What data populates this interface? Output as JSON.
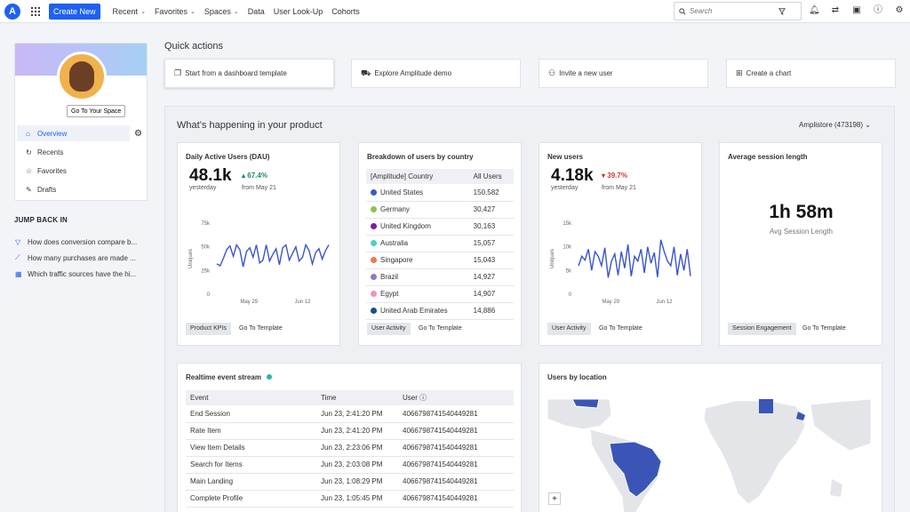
{
  "topnav": {
    "logo_letter": "A",
    "create_label": "Create New",
    "items": [
      {
        "label": "Recent",
        "chevron": true
      },
      {
        "label": "Favorites",
        "chevron": true
      },
      {
        "label": "Spaces",
        "chevron": true
      },
      {
        "label": "Data",
        "chevron": false
      },
      {
        "label": "User Look-Up",
        "chevron": false
      },
      {
        "label": "Cohorts",
        "chevron": false
      }
    ],
    "search_placeholder": "Search",
    "icons": [
      "bell-icon",
      "flow-icon",
      "square-icon",
      "help-icon",
      "gear-icon"
    ]
  },
  "sidebar": {
    "go_to_space": "Go To Your Space",
    "menu": [
      {
        "label": "Overview",
        "icon": "home-icon",
        "active": true
      },
      {
        "label": "Recents",
        "icon": "refresh-icon",
        "active": false
      },
      {
        "label": "Favorites",
        "icon": "star-icon",
        "active": false
      },
      {
        "label": "Drafts",
        "icon": "pencil-icon",
        "active": false
      }
    ],
    "jump_back_title": "JUMP BACK IN",
    "jump_items": [
      {
        "label": "How does conversion compare b...",
        "icon": "funnel-icon"
      },
      {
        "label": "How many purchases are made ...",
        "icon": "line-chart-icon"
      },
      {
        "label": "Which traffic sources have the hi...",
        "icon": "table-icon"
      }
    ]
  },
  "quick_actions": {
    "title": "Quick actions",
    "items": [
      {
        "label": "Start from a dashboard template",
        "icon": "template-icon"
      },
      {
        "label": "Explore Amplitude demo",
        "icon": "truck-icon"
      },
      {
        "label": "Invite a new user",
        "icon": "add-user-icon"
      },
      {
        "label": "Create a chart",
        "icon": "chart-icon"
      }
    ]
  },
  "main": {
    "title": "What’s happening in your product",
    "project": "Amplistore (473198)"
  },
  "dau": {
    "title": "Daily Active Users (DAU)",
    "value": "48.1k",
    "value_label": "yesterday",
    "delta": "67.4%",
    "delta_label": "from May 21",
    "chip": "Product KPIs",
    "link": "Go To Template",
    "chart_data": {
      "type": "line",
      "ylabel": "Uniques",
      "yticks": [
        "75k",
        "50k",
        "25k",
        "0"
      ],
      "ylim": [
        0,
        75000
      ],
      "xticks": [
        "May 29",
        "Jun 12"
      ],
      "values": [
        32000,
        30000,
        38000,
        47000,
        51000,
        40000,
        52000,
        47000,
        29000,
        45000,
        49000,
        39000,
        52000,
        33000,
        36000,
        52000,
        35000,
        42000,
        48000,
        31000,
        49000,
        52000,
        36000,
        43000,
        50000,
        35000,
        39000,
        52000,
        46000,
        32000,
        44000,
        48000,
        37000,
        46000,
        52000
      ]
    }
  },
  "country": {
    "title": "Breakdown of users by country",
    "col1": "[Amplitude] Country",
    "col2": "All Users",
    "rows": [
      {
        "name": "United States",
        "value": "150,582",
        "color": "#3c5bc7"
      },
      {
        "name": "Germany",
        "value": "30,427",
        "color": "#8bc34a"
      },
      {
        "name": "United Kingdom",
        "value": "30,163",
        "color": "#7b1fa2"
      },
      {
        "name": "Australia",
        "value": "15,057",
        "color": "#4dd0c4"
      },
      {
        "name": "Singapore",
        "value": "15,043",
        "color": "#f07850"
      },
      {
        "name": "Brazil",
        "value": "14,927",
        "color": "#9575cd"
      },
      {
        "name": "Egypt",
        "value": "14,907",
        "color": "#f48fc4"
      },
      {
        "name": "United Arab Emirates",
        "value": "14,886",
        "color": "#1a4f8a"
      }
    ],
    "chip": "User Activity",
    "link": "Go To Template"
  },
  "new_users": {
    "title": "New users",
    "value": "4.18k",
    "value_label": "yesterday",
    "delta": "39.7%",
    "delta_label": "from May 21",
    "chip": "User Activity",
    "link": "Go To Template",
    "chart_data": {
      "type": "line",
      "ylabel": "Uniques",
      "yticks": [
        "15k",
        "10k",
        "5k",
        "0"
      ],
      "ylim": [
        0,
        15000
      ],
      "xticks": [
        "May 29",
        "Jun 12"
      ],
      "values": [
        6000,
        8000,
        7200,
        9500,
        5000,
        9000,
        8000,
        6000,
        9800,
        3500,
        7000,
        8500,
        4000,
        9000,
        5500,
        10500,
        3800,
        8000,
        7000,
        9500,
        4500,
        10000,
        6500,
        8800,
        3600,
        11500,
        9000,
        7000,
        6000,
        10000,
        4000,
        8500,
        5000,
        9500,
        3800
      ]
    }
  },
  "session": {
    "title": "Average session length",
    "value": "1h 58m",
    "label": "Avg Session Length",
    "chip": "Session Engagement",
    "link": "Go To Template"
  },
  "realtime": {
    "title": "Realtime event stream",
    "col_event": "Event",
    "col_time": "Time",
    "col_user": "User",
    "rows": [
      {
        "event": "End Session",
        "time": "Jun 23, 2:41:20 PM",
        "user": "4066798741540449281"
      },
      {
        "event": "Rate Item",
        "time": "Jun 23, 2:41:20 PM",
        "user": "4066798741540449281"
      },
      {
        "event": "View Item Details",
        "time": "Jun 23, 2:23:06 PM",
        "user": "4066798741540449281"
      },
      {
        "event": "Search for Items",
        "time": "Jun 23, 2:03:08 PM",
        "user": "4066798741540449281"
      },
      {
        "event": "Main Landing",
        "time": "Jun 23, 1:08:29 PM",
        "user": "4066798741540449281"
      },
      {
        "event": "Complete Profile",
        "time": "Jun 23, 1:05:45 PM",
        "user": "4066798741540449281"
      }
    ]
  },
  "location": {
    "title": "Users by location",
    "zoom_in": "+"
  }
}
